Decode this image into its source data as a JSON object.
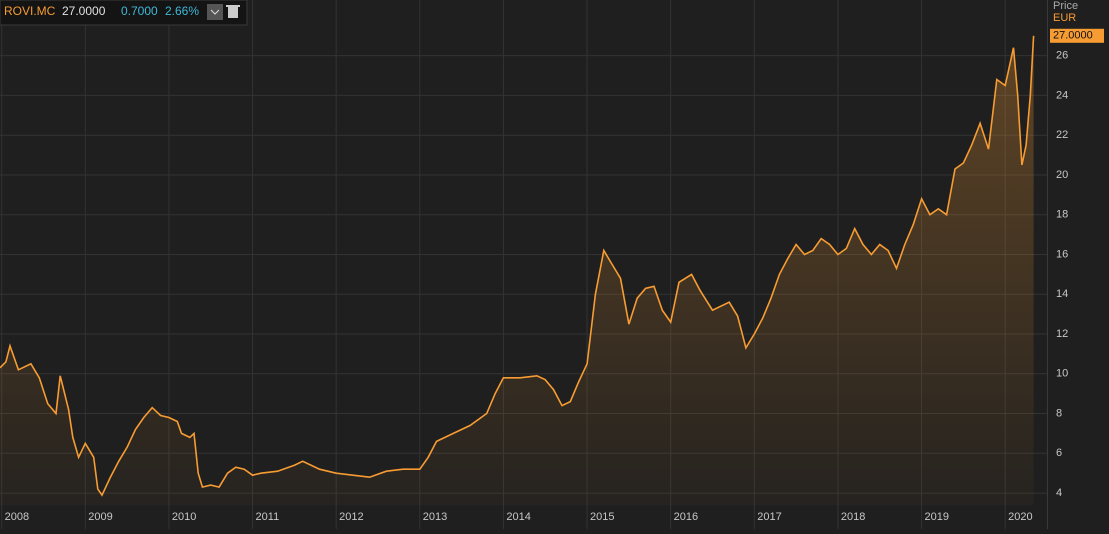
{
  "chart_data": {
    "type": "line",
    "symbol": "ROVI.MC",
    "last": "27.0000",
    "change": "0.7000",
    "change_pct": "2.66%",
    "y_axis_title": "Price",
    "currency": "EUR",
    "x": [
      2007.98,
      2008.05,
      2008.1,
      2008.2,
      2008.35,
      2008.45,
      2008.55,
      2008.65,
      2008.7,
      2008.8,
      2008.85,
      2008.92,
      2009.0,
      2009.1,
      2009.15,
      2009.2,
      2009.3,
      2009.4,
      2009.5,
      2009.6,
      2009.7,
      2009.8,
      2009.9,
      2010.0,
      2010.1,
      2010.15,
      2010.25,
      2010.3,
      2010.35,
      2010.4,
      2010.5,
      2010.6,
      2010.7,
      2010.8,
      2010.9,
      2011.0,
      2011.1,
      2011.3,
      2011.5,
      2011.6,
      2011.8,
      2012.0,
      2012.2,
      2012.4,
      2012.6,
      2012.8,
      2013.0,
      2013.1,
      2013.2,
      2013.4,
      2013.6,
      2013.8,
      2013.9,
      2014.0,
      2014.2,
      2014.4,
      2014.5,
      2014.6,
      2014.7,
      2014.8,
      2014.9,
      2015.0,
      2015.1,
      2015.2,
      2015.3,
      2015.4,
      2015.5,
      2015.6,
      2015.7,
      2015.8,
      2015.9,
      2016.0,
      2016.1,
      2016.25,
      2016.35,
      2016.5,
      2016.7,
      2016.8,
      2016.9,
      2017.0,
      2017.1,
      2017.2,
      2017.3,
      2017.4,
      2017.5,
      2017.6,
      2017.7,
      2017.8,
      2017.9,
      2018.0,
      2018.1,
      2018.2,
      2018.3,
      2018.4,
      2018.5,
      2018.6,
      2018.7,
      2018.8,
      2018.9,
      2019.0,
      2019.1,
      2019.2,
      2019.3,
      2019.4,
      2019.5,
      2019.6,
      2019.7,
      2019.8,
      2019.9,
      2020.0,
      2020.1,
      2020.15,
      2020.2,
      2020.25,
      2020.3,
      2020.34
    ],
    "values": [
      10.3,
      10.6,
      11.4,
      10.2,
      10.5,
      9.8,
      8.5,
      8.0,
      9.9,
      8.2,
      6.8,
      5.8,
      6.5,
      5.8,
      4.2,
      3.9,
      4.8,
      5.6,
      6.3,
      7.2,
      7.8,
      8.3,
      7.9,
      7.8,
      7.6,
      7.0,
      6.8,
      7.0,
      5.0,
      4.3,
      4.4,
      4.3,
      5.0,
      5.3,
      5.2,
      4.9,
      5.0,
      5.1,
      5.4,
      5.6,
      5.2,
      5.0,
      4.9,
      4.8,
      5.1,
      5.2,
      5.2,
      5.8,
      6.6,
      7.0,
      7.4,
      8.0,
      9.0,
      9.8,
      9.8,
      9.9,
      9.7,
      9.2,
      8.4,
      8.6,
      9.6,
      10.5,
      14.0,
      16.2,
      15.5,
      14.8,
      12.5,
      13.8,
      14.3,
      14.4,
      13.2,
      12.6,
      14.6,
      15.0,
      14.2,
      13.2,
      13.6,
      12.9,
      11.3,
      12.0,
      12.8,
      13.8,
      15.0,
      15.8,
      16.5,
      16.0,
      16.2,
      16.8,
      16.5,
      16.0,
      16.3,
      17.3,
      16.5,
      16.0,
      16.5,
      16.2,
      15.3,
      16.5,
      17.5,
      18.8,
      18.0,
      18.3,
      18.0,
      20.3,
      20.6,
      21.5,
      22.6,
      21.3,
      24.8,
      24.5,
      26.4,
      24.0,
      20.5,
      21.5,
      24.0,
      27.0
    ],
    "color": "#f79c33",
    "xlim": [
      2007.98,
      2020.5
    ],
    "xticks": [
      2008,
      2009,
      2010,
      2011,
      2012,
      2013,
      2014,
      2015,
      2016,
      2017,
      2018,
      2019,
      2020
    ],
    "ylim": [
      3.4,
      28.8
    ],
    "yticks": [
      4,
      6,
      8,
      10,
      12,
      14,
      16,
      18,
      20,
      22,
      24,
      26
    ],
    "grid": true
  }
}
